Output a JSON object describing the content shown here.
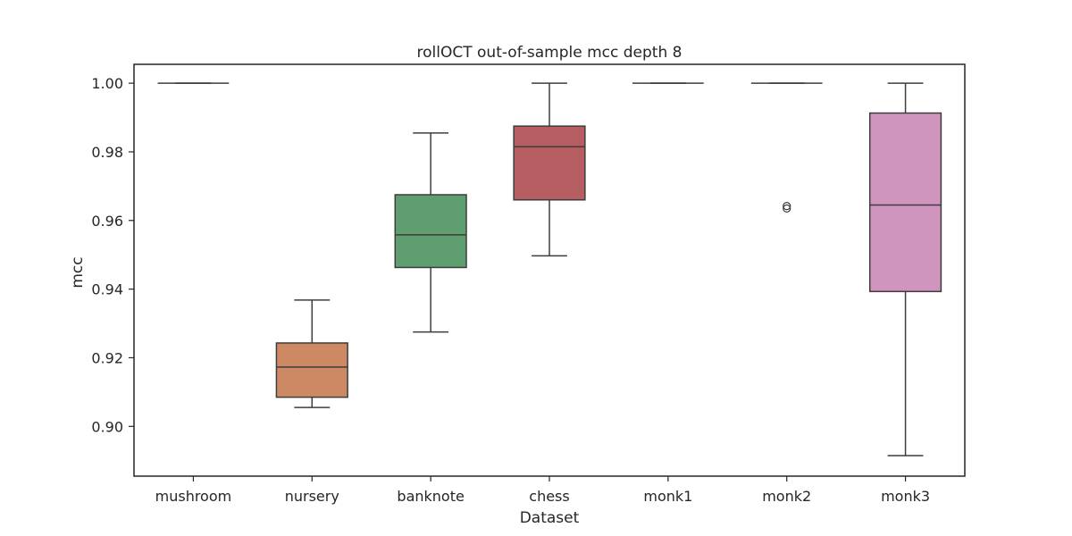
{
  "chart_data": {
    "type": "box",
    "title": "rollOCT out-of-sample mcc depth 8",
    "xlabel": "Dataset",
    "ylabel": "mcc",
    "ylim": [
      0.8855,
      1.0055
    ],
    "yticks": [
      "0.90",
      "0.92",
      "0.94",
      "0.96",
      "0.98",
      "1.00"
    ],
    "ytick_values": [
      0.9,
      0.92,
      0.94,
      0.96,
      0.98,
      1.0
    ],
    "grid": false,
    "categories": [
      "mushroom",
      "nursery",
      "banknote",
      "chess",
      "monk1",
      "monk2",
      "monk3"
    ],
    "boxes": [
      {
        "category": "mushroom",
        "whisker_low": 1.0,
        "q1": 1.0,
        "median": 1.0,
        "q3": 1.0,
        "whisker_high": 1.0,
        "outliers": [],
        "color": "#4c72b0"
      },
      {
        "category": "nursery",
        "whisker_low": 0.9055,
        "q1": 0.9085,
        "median": 0.9173,
        "q3": 0.9243,
        "whisker_high": 0.9368,
        "outliers": [],
        "color": "#cc8963"
      },
      {
        "category": "banknote",
        "whisker_low": 0.9275,
        "q1": 0.9463,
        "median": 0.9558,
        "q3": 0.9675,
        "whisker_high": 0.9855,
        "outliers": [],
        "color": "#5f9e6e"
      },
      {
        "category": "chess",
        "whisker_low": 0.9497,
        "q1": 0.966,
        "median": 0.9815,
        "q3": 0.9875,
        "whisker_high": 1.0,
        "outliers": [],
        "color": "#b55d60"
      },
      {
        "category": "monk1",
        "whisker_low": 1.0,
        "q1": 1.0,
        "median": 1.0,
        "q3": 1.0,
        "whisker_high": 1.0,
        "outliers": [],
        "color": "#857aab"
      },
      {
        "category": "monk2",
        "whisker_low": 1.0,
        "q1": 1.0,
        "median": 1.0,
        "q3": 1.0,
        "whisker_high": 1.0,
        "outliers": [
          0.9635,
          0.9642
        ],
        "color": "#8d7866"
      },
      {
        "category": "monk3",
        "whisker_low": 0.8915,
        "q1": 0.9393,
        "median": 0.9645,
        "q3": 0.9913,
        "whisker_high": 1.0,
        "outliers": [],
        "color": "#d095bf"
      }
    ]
  }
}
